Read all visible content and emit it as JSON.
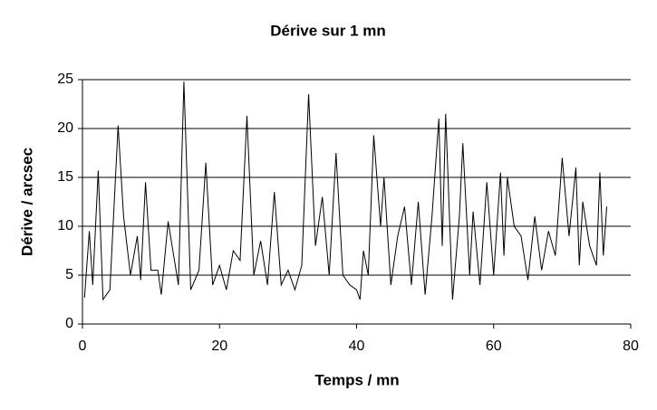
{
  "chart_data": {
    "type": "line",
    "title": "Dérive sur 1 mn",
    "x_label": "Temps / mn",
    "y_label": "Dérive / arcsec",
    "x": [
      0.3,
      1,
      1.5,
      2.3,
      3,
      4,
      5.2,
      6,
      7,
      8,
      8.5,
      9.2,
      10,
      11,
      11.5,
      12.5,
      14,
      14.8,
      15.8,
      17,
      18,
      19,
      20,
      21,
      22,
      23,
      24,
      25,
      26,
      27,
      28,
      29,
      30,
      31,
      32,
      33,
      34,
      35,
      36,
      37,
      38,
      39,
      40,
      40.5,
      41,
      41.7,
      42.5,
      43.5,
      44,
      45,
      46,
      47,
      48,
      49,
      50,
      51,
      52,
      52.5,
      53,
      54,
      55,
      55.5,
      56.5,
      57,
      58,
      59,
      60,
      61,
      61.5,
      62,
      63,
      64,
      65,
      66,
      67,
      68,
      69,
      70,
      71,
      72,
      72.5,
      73,
      74,
      75,
      75.5,
      76,
      76.5
    ],
    "values": [
      2.7,
      9.5,
      4,
      15.7,
      2.5,
      3.5,
      20.3,
      11,
      5,
      9,
      4.5,
      14.5,
      5.5,
      5.5,
      3,
      10.5,
      4,
      24.8,
      3.5,
      5.5,
      16.5,
      4,
      6,
      3.5,
      7.5,
      6.5,
      21.3,
      5,
      8.5,
      4,
      13.5,
      4,
      5.5,
      3.5,
      6,
      23.5,
      8,
      13,
      5,
      17.5,
      5,
      4,
      3.5,
      2.5,
      7.5,
      5,
      19.3,
      10,
      15,
      4,
      9,
      12,
      4,
      12.5,
      3,
      11,
      21,
      8,
      21.5,
      2.5,
      11,
      18.5,
      5,
      11.5,
      4,
      14.5,
      5,
      15.5,
      7,
      15,
      10,
      9,
      4.5,
      11,
      5.5,
      9.5,
      7,
      17,
      9,
      16,
      6,
      12.5,
      8,
      6,
      15.5,
      7,
      12
    ],
    "color": "#000000",
    "xlim": [
      0,
      80
    ],
    "xticks": [
      0,
      20,
      40,
      60,
      80
    ],
    "ylim": [
      0,
      25
    ],
    "yticks": [
      0,
      5,
      10,
      15,
      20,
      25
    ],
    "grid": true
  }
}
